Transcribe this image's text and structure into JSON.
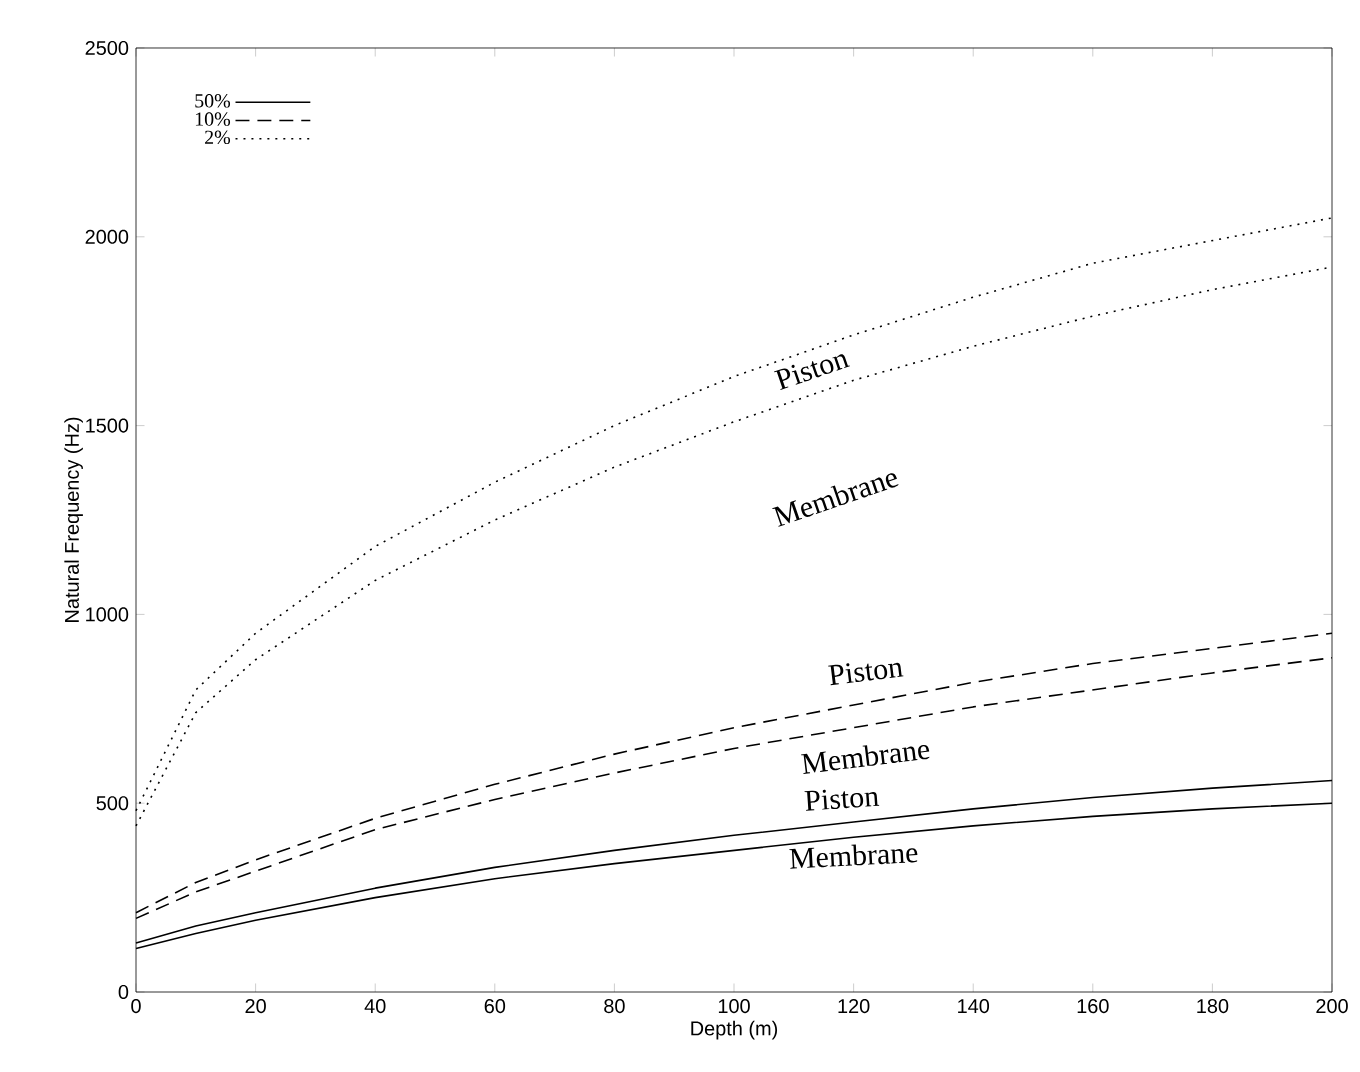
{
  "chart_data": {
    "type": "line",
    "xlabel": "Depth (m)",
    "ylabel": "Natural Frequency (Hz)",
    "xlim": [
      0,
      200
    ],
    "ylim": [
      0,
      2500
    ],
    "xticks": [
      0,
      20,
      40,
      60,
      80,
      100,
      120,
      140,
      160,
      180,
      200
    ],
    "yticks": [
      0,
      500,
      1000,
      1500,
      2000,
      2500
    ],
    "grid": false,
    "legend": "top left",
    "marker": "none",
    "x": [
      0,
      10,
      20,
      40,
      60,
      80,
      100,
      120,
      140,
      160,
      180,
      200
    ],
    "series": [
      {
        "name": "50%",
        "color": "#000000",
        "line_style": "solid",
        "values": [
          130,
          175,
          210,
          275,
          330,
          375,
          415,
          450,
          485,
          515,
          540,
          560
        ]
      },
      {
        "color": "#000000",
        "line_style": "solid",
        "values": [
          115,
          155,
          190,
          250,
          300,
          340,
          375,
          410,
          440,
          465,
          485,
          500
        ]
      },
      {
        "name": "10%",
        "color": "#000000",
        "line_style": "dashed",
        "values": [
          210,
          290,
          350,
          460,
          550,
          630,
          700,
          760,
          820,
          870,
          910,
          950
        ]
      },
      {
        "color": "#000000",
        "line_style": "dashed",
        "values": [
          195,
          265,
          320,
          430,
          510,
          580,
          645,
          700,
          755,
          800,
          845,
          885
        ]
      },
      {
        "name": "2%",
        "color": "#000000",
        "line_style": "dotted",
        "values": [
          480,
          800,
          950,
          1180,
          1350,
          1500,
          1630,
          1740,
          1840,
          1930,
          1990,
          2050
        ]
      },
      {
        "color": "#000000",
        "line_style": "dotted",
        "values": [
          440,
          740,
          880,
          1090,
          1250,
          1390,
          1510,
          1620,
          1710,
          1790,
          1860,
          1920
        ]
      }
    ],
    "annotations": [
      "Piston",
      "Membrane",
      "Piston",
      "Membrane",
      "Piston",
      "Membrane"
    ]
  }
}
